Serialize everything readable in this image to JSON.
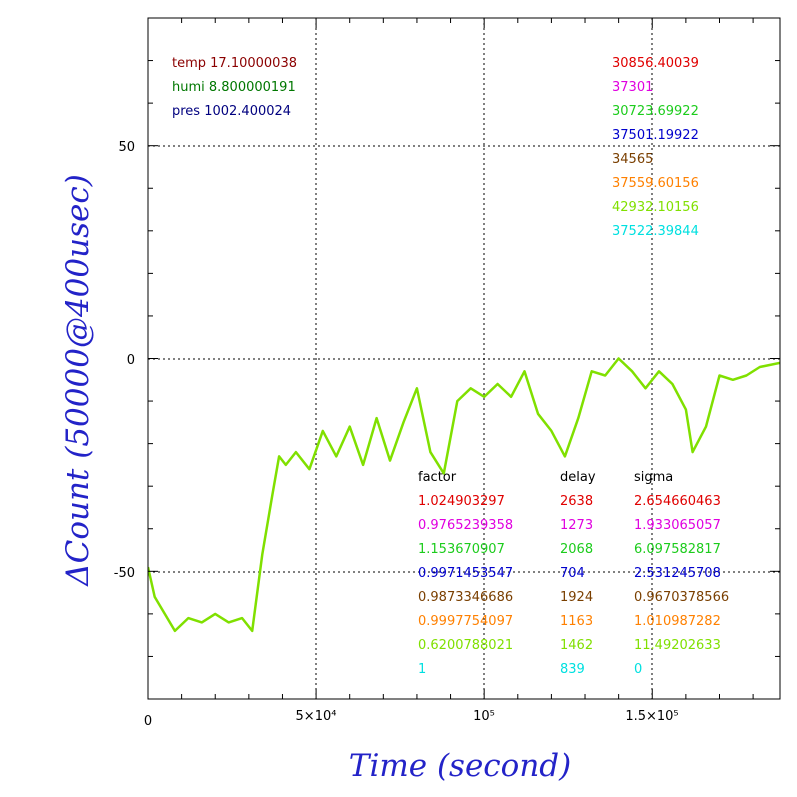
{
  "chart_data": {
    "type": "line",
    "title": "",
    "xlabel": "Time (second)",
    "ylabel": "ΔCount (50000@400usec)",
    "xlim": [
      0,
      188000
    ],
    "ylim": [
      -80,
      80
    ],
    "x_ticks": [
      {
        "value": 0,
        "label": "0"
      },
      {
        "value": 50000,
        "label": "5×10⁴"
      },
      {
        "value": 100000,
        "label": "10⁵"
      },
      {
        "value": 150000,
        "label": "1.5×10⁵"
      }
    ],
    "y_ticks": [
      {
        "value": -50,
        "label": "-50"
      },
      {
        "value": 0,
        "label": "0"
      },
      {
        "value": 50,
        "label": "50"
      }
    ],
    "grid": true,
    "env_labels": [
      {
        "text": "temp 17.10000038",
        "color": "#8b0000"
      },
      {
        "text": "humi 8.800000191",
        "color": "#007700"
      },
      {
        "text": "pres 1002.400024",
        "color": "#00007f"
      }
    ],
    "series_values": [
      {
        "text": "30856.40039",
        "color": "#e00000"
      },
      {
        "text": "37301",
        "color": "#e000e0"
      },
      {
        "text": "30723.69922",
        "color": "#1ccc1c"
      },
      {
        "text": "37501.19922",
        "color": "#0000cc"
      },
      {
        "text": "34565",
        "color": "#7a3f00"
      },
      {
        "text": "37559.60156",
        "color": "#ff8000"
      },
      {
        "text": "42932.10156",
        "color": "#80e000"
      },
      {
        "text": "37522.39844",
        "color": "#00e0e0"
      }
    ],
    "table_headers": [
      "factor",
      "delay",
      "sigma"
    ],
    "table_rows": [
      {
        "factor": "1.024903297",
        "delay": "2638",
        "sigma": "2.654660463",
        "color": "#e00000"
      },
      {
        "factor": "0.9765239358",
        "delay": "1273",
        "sigma": "1.933065057",
        "color": "#e000e0"
      },
      {
        "factor": "1.153670907",
        "delay": "2068",
        "sigma": "6.097582817",
        "color": "#1ccc1c"
      },
      {
        "factor": "0.9971453547",
        "delay": "704",
        "sigma": "2.531245708",
        "color": "#0000cc"
      },
      {
        "factor": "0.9873346686",
        "delay": "1924",
        "sigma": "0.9670378566",
        "color": "#7a3f00"
      },
      {
        "factor": "0.9997754097",
        "delay": "1163",
        "sigma": "1.010987282",
        "color": "#ff8000"
      },
      {
        "factor": "0.6200788021",
        "delay": "1462",
        "sigma": "11.49202633",
        "color": "#80e000"
      },
      {
        "factor": "1",
        "delay": "839",
        "sigma": "0",
        "color": "#00e0e0"
      }
    ],
    "series": [
      {
        "color": "#80e000",
        "width": 2.5,
        "x": [
          0,
          2000,
          5000,
          8000,
          12000,
          16000,
          20000,
          24000,
          28000,
          31000,
          34000,
          37000,
          39000,
          41000,
          44000,
          48000,
          52000,
          56000,
          60000,
          64000,
          68000,
          72000,
          76000,
          80000,
          84000,
          88000,
          92000,
          96000,
          100000,
          104000,
          108000,
          112000,
          116000,
          120000,
          124000,
          128000,
          132000,
          136000,
          140000,
          144000,
          148000,
          152000,
          156000,
          160000,
          162000,
          166000,
          170000,
          174000,
          178000,
          182000,
          188000
        ],
        "y": [
          -49,
          -56,
          -60,
          -64,
          -61,
          -62,
          -60,
          -62,
          -61,
          -64,
          -46,
          -32,
          -23,
          -25,
          -22,
          -26,
          -17,
          -23,
          -16,
          -25,
          -14,
          -24,
          -15,
          -7,
          -22,
          -27,
          -10,
          -7,
          -9,
          -6,
          -9,
          -3,
          -13,
          -17,
          -23,
          -14,
          -3,
          -4,
          0,
          -3,
          -7,
          -3,
          -6,
          -12,
          -22,
          -16,
          -4,
          -5,
          -4,
          -2,
          -1
        ]
      }
    ]
  }
}
